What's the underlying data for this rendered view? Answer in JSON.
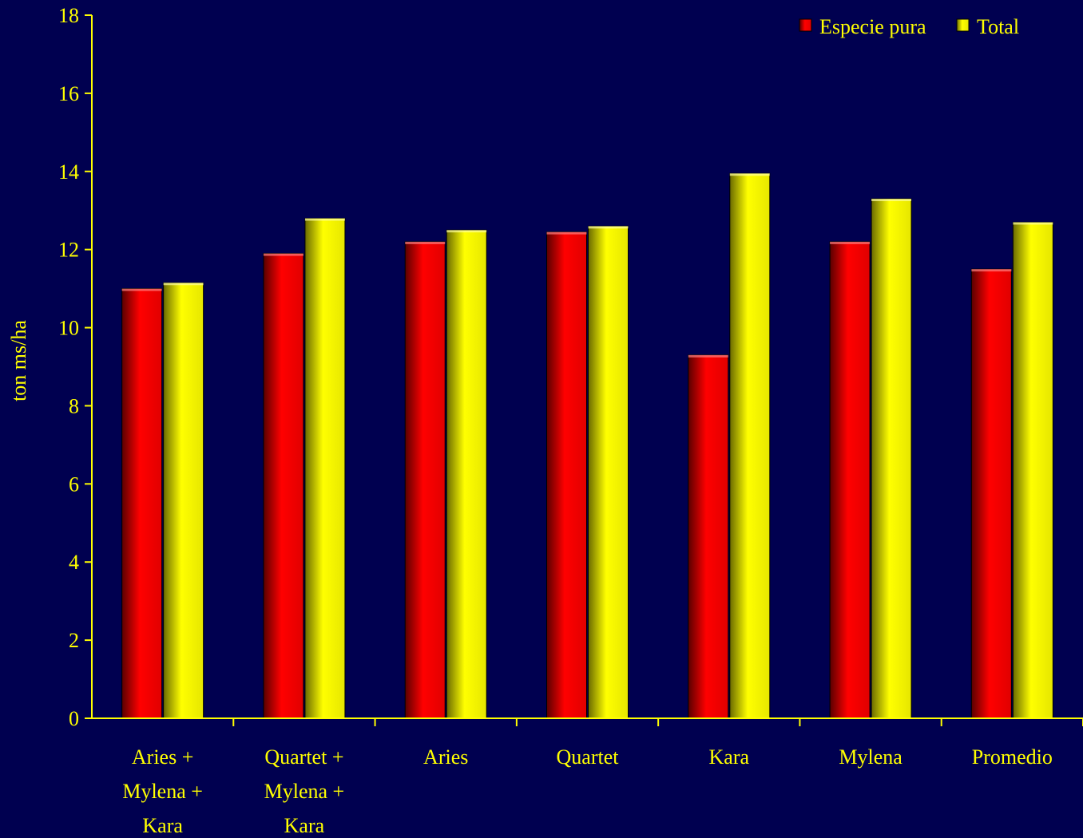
{
  "colors": {
    "background": "#000050",
    "axis": "#FFFF00",
    "text": "#FFFF00",
    "series_especie": "#FF0000",
    "series_total": "#FFFF00"
  },
  "chart_data": {
    "type": "bar",
    "title": "",
    "xlabel": "",
    "ylabel": "ton ms/ha",
    "ylim": [
      0,
      18
    ],
    "yticks": [
      0,
      2,
      4,
      6,
      8,
      10,
      12,
      14,
      16,
      18
    ],
    "categories": [
      [
        "Aries +",
        "Mylena +",
        "Kara"
      ],
      [
        "Quartet +",
        "Mylena +",
        "Kara"
      ],
      [
        "Aries"
      ],
      [
        "Quartet"
      ],
      [
        "Kara"
      ],
      [
        "Mylena"
      ],
      [
        "Promedio"
      ]
    ],
    "series": [
      {
        "name": "Especie pura",
        "color": "#FF0000",
        "values": [
          11.0,
          11.9,
          12.2,
          12.45,
          9.3,
          12.2,
          11.5
        ]
      },
      {
        "name": "Total",
        "color": "#FFFF00",
        "values": [
          11.15,
          12.8,
          12.5,
          12.6,
          13.95,
          13.3,
          12.7
        ]
      }
    ],
    "legend": {
      "position": "top-right"
    },
    "grid": false
  }
}
